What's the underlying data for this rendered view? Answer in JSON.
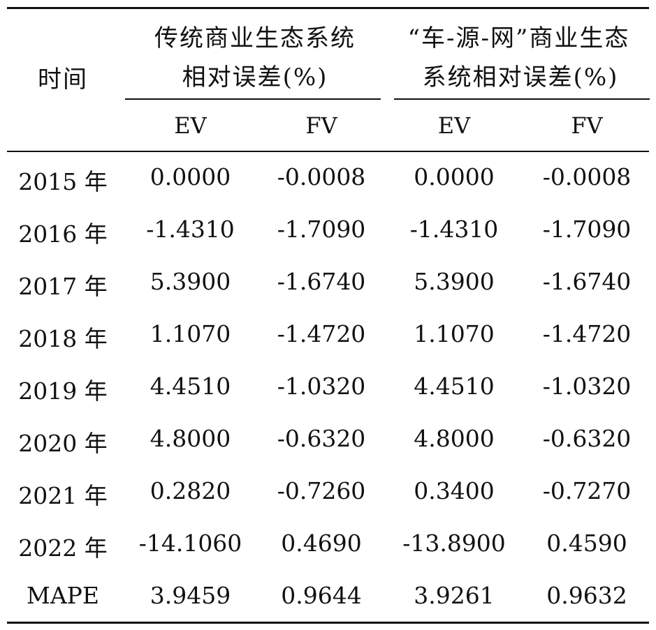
{
  "table": {
    "header": {
      "time": "时间",
      "group1_line1": "传统商业生态系统",
      "group1_line2": "相对误差(%)",
      "group2_line1": "“车-源-网”商业生态",
      "group2_line2": "系统相对误差(%)",
      "sub": [
        "EV",
        "FV",
        "EV",
        "FV"
      ]
    },
    "rows": [
      {
        "label": "2015 年",
        "values": [
          "0.0000",
          "-0.0008",
          "0.0000",
          "-0.0008"
        ]
      },
      {
        "label": "2016 年",
        "values": [
          "-1.4310",
          "-1.7090",
          "-1.4310",
          "-1.7090"
        ]
      },
      {
        "label": "2017 年",
        "values": [
          "5.3900",
          "-1.6740",
          "5.3900",
          "-1.6740"
        ]
      },
      {
        "label": "2018 年",
        "values": [
          "1.1070",
          "-1.4720",
          "1.1070",
          "-1.4720"
        ]
      },
      {
        "label": "2019 年",
        "values": [
          "4.4510",
          "-1.0320",
          "4.4510",
          "-1.0320"
        ]
      },
      {
        "label": "2020 年",
        "values": [
          "4.8000",
          "-0.6320",
          "4.8000",
          "-0.6320"
        ]
      },
      {
        "label": "2021 年",
        "values": [
          "0.2820",
          "-0.7260",
          "0.3400",
          "-0.7270"
        ]
      },
      {
        "label": "2022 年",
        "values": [
          "-14.1060",
          "0.4690",
          "-13.8900",
          "0.4590"
        ]
      },
      {
        "label": "MAPE",
        "values": [
          "3.9459",
          "0.9644",
          "3.9261",
          "0.9632"
        ]
      }
    ]
  }
}
